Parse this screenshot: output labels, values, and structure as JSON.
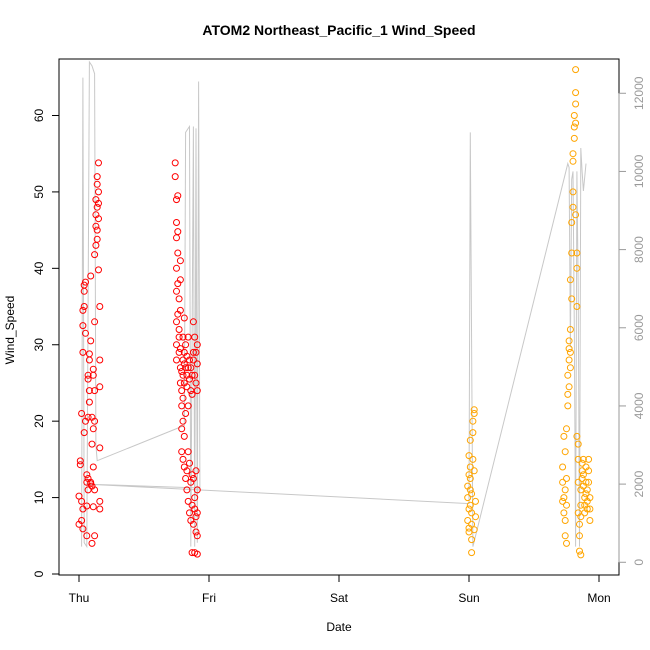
{
  "chart_data": {
    "type": "scatter",
    "title": "ATOM2 Northeast_Pacific_1 Wind_Speed",
    "xlabel": "Date",
    "ylabel": "Wind_Speed",
    "x_ticks": [
      "Thu",
      "Fri",
      "Sat",
      "Sun",
      "Mon"
    ],
    "x_range_days": [
      -0.22,
      4.2
    ],
    "ylim": [
      0,
      67
    ],
    "y_ticks": [
      0,
      10,
      20,
      30,
      40,
      50,
      60
    ],
    "y2_ticks": [
      0,
      2000,
      4000,
      6000,
      8000,
      10000,
      12000
    ],
    "y2_range": [
      -300,
      12800
    ],
    "grid": false,
    "colors": {
      "series_red": "#ff0000",
      "series_orange": "#ffa500",
      "secondary_line": "#c8c8c8",
      "right_axis": "#9a9a9a"
    },
    "series": [
      {
        "color": "#ff0000",
        "points": [
          [
            0.0,
            6.5
          ],
          [
            0.0,
            10.2
          ],
          [
            0.01,
            14.3
          ],
          [
            0.01,
            14.8
          ],
          [
            0.02,
            9.5
          ],
          [
            0.02,
            7.0
          ],
          [
            0.03,
            5.9
          ],
          [
            0.03,
            8.5
          ],
          [
            0.02,
            21.0
          ],
          [
            0.03,
            29.0
          ],
          [
            0.03,
            32.5
          ],
          [
            0.03,
            34.5
          ],
          [
            0.04,
            35.0
          ],
          [
            0.04,
            37.0
          ],
          [
            0.04,
            37.8
          ],
          [
            0.05,
            38.2
          ],
          [
            0.05,
            31.5
          ],
          [
            0.04,
            18.5
          ],
          [
            0.05,
            20.0
          ],
          [
            0.06,
            8.9
          ],
          [
            0.06,
            12.0
          ],
          [
            0.06,
            13.0
          ],
          [
            0.06,
            5.0
          ],
          [
            0.07,
            11.0
          ],
          [
            0.07,
            12.5
          ],
          [
            0.07,
            20.5
          ],
          [
            0.07,
            25.5
          ],
          [
            0.07,
            26.0
          ],
          [
            0.08,
            22.5
          ],
          [
            0.08,
            24.0
          ],
          [
            0.08,
            28.0
          ],
          [
            0.08,
            28.8
          ],
          [
            0.09,
            11.8
          ],
          [
            0.09,
            12.0
          ],
          [
            0.09,
            30.5
          ],
          [
            0.09,
            39.0
          ],
          [
            0.1,
            17.0
          ],
          [
            0.1,
            20.5
          ],
          [
            0.1,
            11.5
          ],
          [
            0.1,
            4.0
          ],
          [
            0.11,
            8.8
          ],
          [
            0.11,
            14.0
          ],
          [
            0.11,
            19.0
          ],
          [
            0.11,
            26.0
          ],
          [
            0.11,
            26.8
          ],
          [
            0.12,
            5.0
          ],
          [
            0.12,
            11.0
          ],
          [
            0.12,
            20.0
          ],
          [
            0.12,
            24.0
          ],
          [
            0.12,
            33.0
          ],
          [
            0.12,
            41.8
          ],
          [
            0.13,
            43.0
          ],
          [
            0.13,
            45.5
          ],
          [
            0.13,
            47.0
          ],
          [
            0.13,
            49.0
          ],
          [
            0.14,
            45.0
          ],
          [
            0.14,
            48.0
          ],
          [
            0.14,
            51.0
          ],
          [
            0.14,
            52.0
          ],
          [
            0.14,
            43.8
          ],
          [
            0.15,
            46.5
          ],
          [
            0.15,
            48.5
          ],
          [
            0.15,
            50.0
          ],
          [
            0.15,
            53.8
          ],
          [
            0.15,
            39.8
          ],
          [
            0.16,
            35.0
          ],
          [
            0.16,
            28.0
          ],
          [
            0.16,
            24.5
          ],
          [
            0.16,
            16.5
          ],
          [
            0.16,
            9.5
          ],
          [
            0.16,
            8.5
          ]
        ]
      },
      {
        "color": "#ff0000",
        "points": [
          [
            0.74,
            52.0
          ],
          [
            0.74,
            53.8
          ],
          [
            0.75,
            49.0
          ],
          [
            0.75,
            46.0
          ],
          [
            0.75,
            44.0
          ],
          [
            0.75,
            40.0
          ],
          [
            0.75,
            37.0
          ],
          [
            0.75,
            33.0
          ],
          [
            0.75,
            30.0
          ],
          [
            0.75,
            28.0
          ],
          [
            0.76,
            49.5
          ],
          [
            0.76,
            44.8
          ],
          [
            0.76,
            42.0
          ],
          [
            0.76,
            38.0
          ],
          [
            0.76,
            34.0
          ],
          [
            0.77,
            36.0
          ],
          [
            0.77,
            32.0
          ],
          [
            0.77,
            31.0
          ],
          [
            0.77,
            29.0
          ],
          [
            0.78,
            41.0
          ],
          [
            0.78,
            38.5
          ],
          [
            0.78,
            34.5
          ],
          [
            0.78,
            29.5
          ],
          [
            0.78,
            27.0
          ],
          [
            0.78,
            25.0
          ],
          [
            0.79,
            26.5
          ],
          [
            0.79,
            24.0
          ],
          [
            0.79,
            22.0
          ],
          [
            0.79,
            19.0
          ],
          [
            0.79,
            16.0
          ],
          [
            0.8,
            31.0
          ],
          [
            0.8,
            28.0
          ],
          [
            0.8,
            26.0
          ],
          [
            0.8,
            23.0
          ],
          [
            0.8,
            20.0
          ],
          [
            0.8,
            15.0
          ],
          [
            0.81,
            33.5
          ],
          [
            0.81,
            29.0
          ],
          [
            0.81,
            27.5
          ],
          [
            0.81,
            25.0
          ],
          [
            0.81,
            18.0
          ],
          [
            0.81,
            14.0
          ],
          [
            0.82,
            30.0
          ],
          [
            0.82,
            27.0
          ],
          [
            0.82,
            21.0
          ],
          [
            0.82,
            12.5
          ],
          [
            0.83,
            28.5
          ],
          [
            0.83,
            26.0
          ],
          [
            0.83,
            24.5
          ],
          [
            0.83,
            13.5
          ],
          [
            0.83,
            11.0
          ],
          [
            0.84,
            31.0
          ],
          [
            0.84,
            27.0
          ],
          [
            0.84,
            22.0
          ],
          [
            0.84,
            16.0
          ],
          [
            0.84,
            9.5
          ],
          [
            0.85,
            28.0
          ],
          [
            0.85,
            25.5
          ],
          [
            0.85,
            14.5
          ],
          [
            0.85,
            8.0
          ],
          [
            0.86,
            27.0
          ],
          [
            0.86,
            24.0
          ],
          [
            0.86,
            12.0
          ],
          [
            0.86,
            7.0
          ],
          [
            0.87,
            26.0
          ],
          [
            0.87,
            23.5
          ],
          [
            0.87,
            13.0
          ],
          [
            0.87,
            9.0
          ],
          [
            0.87,
            2.8
          ],
          [
            0.88,
            33.0
          ],
          [
            0.88,
            29.0
          ],
          [
            0.88,
            28.0
          ],
          [
            0.88,
            12.5
          ],
          [
            0.88,
            6.5
          ],
          [
            0.89,
            31.0
          ],
          [
            0.89,
            26.0
          ],
          [
            0.89,
            10.0
          ],
          [
            0.89,
            8.5
          ],
          [
            0.89,
            2.8
          ],
          [
            0.9,
            29.0
          ],
          [
            0.9,
            25.0
          ],
          [
            0.9,
            13.5
          ],
          [
            0.9,
            7.5
          ],
          [
            0.9,
            5.5
          ],
          [
            0.91,
            30.0
          ],
          [
            0.91,
            27.5
          ],
          [
            0.91,
            24.0
          ],
          [
            0.91,
            11.0
          ],
          [
            0.91,
            8.0
          ],
          [
            0.91,
            5.0
          ],
          [
            0.91,
            2.6
          ]
        ]
      },
      {
        "color": "#ffa500",
        "points": [
          [
            2.99,
            7.0
          ],
          [
            2.99,
            10.0
          ],
          [
            2.99,
            11.5
          ],
          [
            3.0,
            13.0
          ],
          [
            3.0,
            15.5
          ],
          [
            3.0,
            8.5
          ],
          [
            3.0,
            6.0
          ],
          [
            3.0,
            5.5
          ],
          [
            3.01,
            11.0
          ],
          [
            3.01,
            14.0
          ],
          [
            3.01,
            17.5
          ],
          [
            3.01,
            12.5
          ],
          [
            3.01,
            9.0
          ],
          [
            3.02,
            2.8
          ],
          [
            3.02,
            4.5
          ],
          [
            3.02,
            6.5
          ],
          [
            3.02,
            8.0
          ],
          [
            3.02,
            10.5
          ],
          [
            3.03,
            15.0
          ],
          [
            3.03,
            18.5
          ],
          [
            3.03,
            20.0
          ],
          [
            3.04,
            21.0
          ],
          [
            3.04,
            21.5
          ],
          [
            3.04,
            13.5
          ],
          [
            3.04,
            5.8
          ],
          [
            3.05,
            7.5
          ],
          [
            3.05,
            9.5
          ]
        ]
      },
      {
        "color": "#ffa500",
        "points": [
          [
            3.72,
            9.5
          ],
          [
            3.72,
            12.0
          ],
          [
            3.72,
            14.0
          ],
          [
            3.73,
            8.0
          ],
          [
            3.73,
            10.0
          ],
          [
            3.73,
            18.0
          ],
          [
            3.74,
            5.0
          ],
          [
            3.74,
            7.0
          ],
          [
            3.74,
            11.0
          ],
          [
            3.74,
            16.0
          ],
          [
            3.75,
            4.0
          ],
          [
            3.75,
            9.0
          ],
          [
            3.75,
            12.5
          ],
          [
            3.75,
            19.0
          ],
          [
            3.76,
            22.0
          ],
          [
            3.76,
            23.5
          ],
          [
            3.76,
            26.0
          ],
          [
            3.77,
            24.5
          ],
          [
            3.77,
            28.0
          ],
          [
            3.77,
            29.5
          ],
          [
            3.77,
            30.5
          ],
          [
            3.78,
            27.0
          ],
          [
            3.78,
            29.0
          ],
          [
            3.78,
            32.0
          ],
          [
            3.78,
            38.5
          ],
          [
            3.79,
            36.0
          ],
          [
            3.79,
            42.0
          ],
          [
            3.79,
            46.0
          ],
          [
            3.8,
            48.0
          ],
          [
            3.8,
            50.0
          ],
          [
            3.8,
            54.0
          ],
          [
            3.8,
            55.0
          ],
          [
            3.81,
            57.0
          ],
          [
            3.81,
            58.5
          ],
          [
            3.81,
            60.0
          ],
          [
            3.82,
            59.0
          ],
          [
            3.82,
            63.0
          ],
          [
            3.82,
            66.0
          ],
          [
            3.82,
            61.5
          ],
          [
            3.82,
            47.0
          ],
          [
            3.83,
            42.0
          ],
          [
            3.83,
            40.0
          ],
          [
            3.83,
            35.0
          ],
          [
            3.83,
            18.0
          ],
          [
            3.84,
            17.0
          ],
          [
            3.84,
            15.0
          ],
          [
            3.84,
            12.0
          ],
          [
            3.84,
            8.0
          ],
          [
            3.85,
            6.5
          ],
          [
            3.85,
            5.0
          ],
          [
            3.85,
            3.0
          ],
          [
            3.86,
            2.5
          ],
          [
            3.86,
            7.5
          ],
          [
            3.86,
            9.0
          ],
          [
            3.86,
            11.0
          ],
          [
            3.87,
            12.5
          ],
          [
            3.87,
            13.5
          ],
          [
            3.87,
            14.5
          ],
          [
            3.88,
            15.0
          ],
          [
            3.88,
            13.0
          ],
          [
            3.88,
            11.5
          ],
          [
            3.89,
            10.0
          ],
          [
            3.89,
            9.0
          ],
          [
            3.89,
            8.0
          ],
          [
            3.9,
            14.0
          ],
          [
            3.9,
            12.0
          ],
          [
            3.9,
            10.5
          ],
          [
            3.91,
            11.0
          ],
          [
            3.91,
            9.5
          ],
          [
            3.91,
            8.5
          ],
          [
            3.92,
            13.5
          ],
          [
            3.92,
            15.0
          ],
          [
            3.92,
            12.0
          ],
          [
            3.93,
            10.0
          ],
          [
            3.93,
            8.5
          ],
          [
            3.93,
            7.0
          ]
        ]
      }
    ],
    "secondary_line": {
      "color": "#c8c8c8",
      "axis": "right",
      "points": [
        [
          0.02,
          400
        ],
        [
          0.03,
          12400
        ],
        [
          0.04,
          500
        ],
        [
          0.06,
          400
        ],
        [
          0.08,
          12800
        ],
        [
          0.1,
          12700
        ],
        [
          0.11,
          12600
        ],
        [
          0.12,
          12500
        ],
        [
          0.13,
          3000
        ],
        [
          0.14,
          2600
        ],
        [
          0.81,
          3500
        ],
        [
          0.82,
          11000
        ],
        [
          0.84,
          11100
        ],
        [
          0.85,
          11150
        ],
        [
          0.86,
          400
        ],
        [
          0.88,
          11150
        ],
        [
          0.89,
          400
        ],
        [
          0.9,
          11100
        ],
        [
          0.91,
          500
        ],
        [
          0.92,
          12300
        ],
        [
          0.93,
          1900
        ],
        [
          0.05,
          2000
        ],
        [
          3.0,
          1500
        ],
        [
          3.01,
          11000
        ],
        [
          3.02,
          5600
        ],
        [
          3.03,
          400
        ],
        [
          3.76,
          10200
        ],
        [
          3.77,
          10100
        ],
        [
          3.78,
          5500
        ],
        [
          3.79,
          9800
        ],
        [
          3.8,
          10000
        ],
        [
          3.81,
          6000
        ],
        [
          3.82,
          400
        ],
        [
          3.83,
          10000
        ],
        [
          3.84,
          7000
        ],
        [
          3.85,
          400
        ],
        [
          3.86,
          10600
        ],
        [
          3.87,
          10000
        ],
        [
          3.88,
          9500
        ],
        [
          3.9,
          10200
        ]
      ]
    }
  }
}
